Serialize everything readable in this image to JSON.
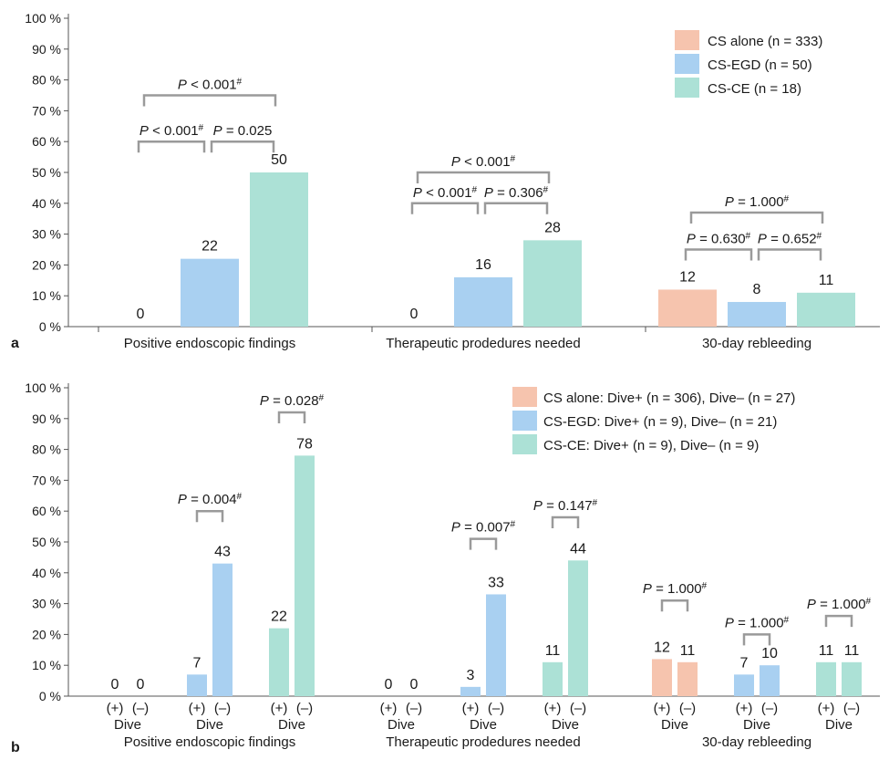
{
  "colors": {
    "cs_alone": "#f6c4ae",
    "cs_egd": "#a9d0f1",
    "cs_ce": "#ace1d6",
    "axis": "#555555",
    "bracket": "#9a9a9a"
  },
  "chart_data": [
    {
      "type": "bar",
      "panel_label": "a",
      "ylim": [
        0,
        100
      ],
      "ytick_labels": [
        "0 %",
        "10 %",
        "20 %",
        "30 %",
        "40 %",
        "50 %",
        "60 %",
        "70 %",
        "80 %",
        "90 %",
        "100 %"
      ],
      "categories": [
        "Positive endoscopic findings",
        "Therapeutic prodedures needed",
        "30-day rebleeding"
      ],
      "series": [
        {
          "name": "CS alone (n = 333)",
          "values": [
            0,
            0,
            12
          ]
        },
        {
          "name": "CS-EGD (n = 50)",
          "values": [
            22,
            16,
            8
          ]
        },
        {
          "name": "CS-CE (n = 18)",
          "values": [
            50,
            28,
            11
          ]
        }
      ],
      "legend_position": "top-right",
      "comparisons": [
        {
          "category": 0,
          "from": 0,
          "to": 1,
          "level": 60,
          "p": "P < 0.001#"
        },
        {
          "category": 0,
          "from": 1,
          "to": 2,
          "level": 60,
          "p": "P = 0.025"
        },
        {
          "category": 0,
          "from": 0,
          "to": 2,
          "level": 75,
          "p": "P < 0.001#"
        },
        {
          "category": 1,
          "from": 0,
          "to": 1,
          "level": 40,
          "p": "P < 0.001#"
        },
        {
          "category": 1,
          "from": 1,
          "to": 2,
          "level": 40,
          "p": "P = 0.306#"
        },
        {
          "category": 1,
          "from": 0,
          "to": 2,
          "level": 50,
          "p": "P < 0.001#"
        },
        {
          "category": 2,
          "from": 0,
          "to": 1,
          "level": 25,
          "p": "P = 0.630#"
        },
        {
          "category": 2,
          "from": 1,
          "to": 2,
          "level": 25,
          "p": "P = 0.652#"
        },
        {
          "category": 2,
          "from": 0,
          "to": 2,
          "level": 37,
          "p": "P = 1.000#"
        }
      ]
    },
    {
      "type": "bar",
      "panel_label": "b",
      "ylim": [
        0,
        100
      ],
      "ytick_labels": [
        "0 %",
        "10 %",
        "20 %",
        "30 %",
        "40 %",
        "50 %",
        "60 %",
        "70 %",
        "80 %",
        "90 %",
        "100 %"
      ],
      "categories": [
        "Positive endoscopic findings",
        "Therapeutic prodedures needed",
        "30-day rebleeding"
      ],
      "subgroup_labels": [
        "(+)",
        "(–)"
      ],
      "subgroup_axis_label": "Dive",
      "series": [
        {
          "name": "CS alone: Dive+ (n = 306), Dive– (n = 27)",
          "dive_plus": [
            0,
            0,
            12
          ],
          "dive_minus": [
            0,
            0,
            11
          ],
          "p": [
            "",
            "",
            "P = 1.000#"
          ],
          "bracket_level": [
            0,
            0,
            31
          ]
        },
        {
          "name": "CS-EGD: Dive+ (n = 9), Dive– (n = 21)",
          "dive_plus": [
            7,
            3,
            7
          ],
          "dive_minus": [
            43,
            33,
            10
          ],
          "p": [
            "P = 0.004#",
            "P = 0.007#",
            "P = 1.000#"
          ],
          "bracket_level": [
            60,
            51,
            20
          ]
        },
        {
          "name": "CS-CE: Dive+ (n = 9), Dive– (n = 9)",
          "dive_plus": [
            22,
            11,
            11
          ],
          "dive_minus": [
            78,
            44,
            11
          ],
          "p": [
            "P = 0.028#",
            "P = 0.147#",
            "P = 1.000#"
          ],
          "bracket_level": [
            92,
            58,
            26
          ]
        }
      ],
      "legend_position": "top-right"
    }
  ]
}
